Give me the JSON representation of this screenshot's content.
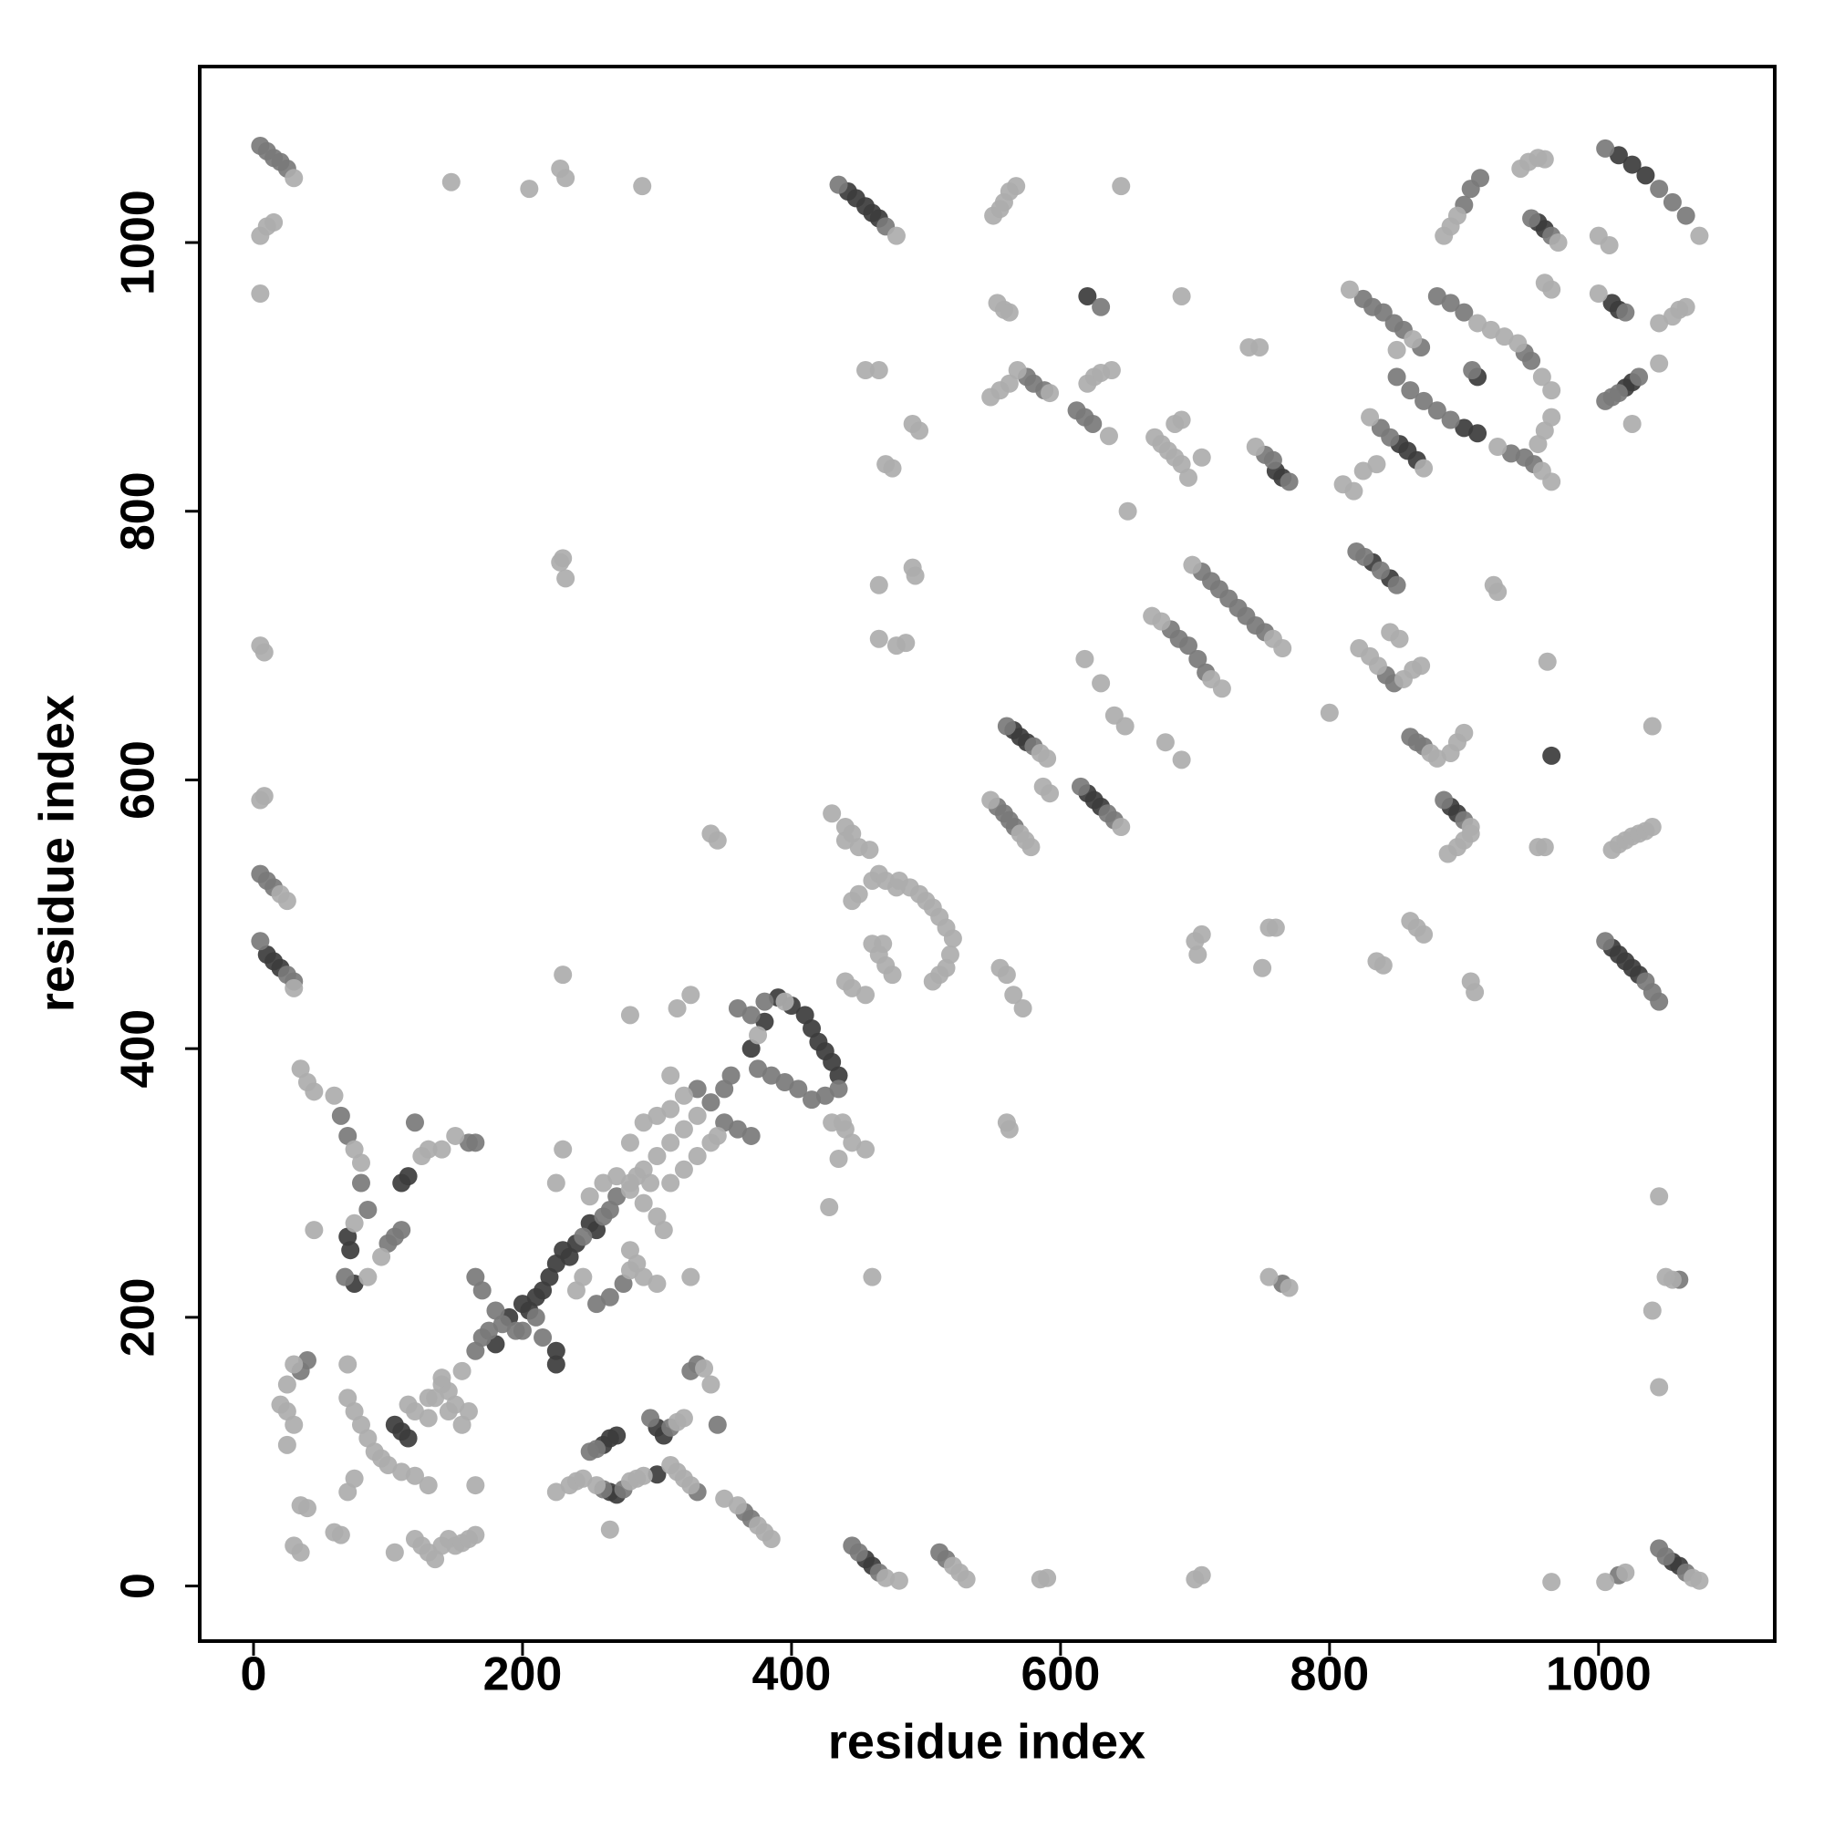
{
  "chart_data": {
    "type": "scatter",
    "xlabel": "residue index",
    "ylabel": "residue index",
    "xlim": [
      -40,
      1131
    ],
    "ylim": [
      -41,
      1131
    ],
    "xticks": [
      0,
      200,
      400,
      600,
      800,
      1000
    ],
    "yticks": [
      0,
      200,
      400,
      600,
      800,
      1000
    ],
    "series": [
      {
        "color": "#3c3c3c",
        "x": [
          442,
          448,
          455,
          460,
          465,
          1015,
          1025,
          1035,
          1010,
          1015,
          1020,
          1025,
          1030,
          10,
          15,
          20,
          390,
          400,
          410,
          415,
          420,
          425,
          430,
          435,
          380,
          370,
          180,
          190,
          200,
          205,
          210,
          215,
          220,
          225,
          230,
          235,
          240,
          250,
          255,
          225,
          225,
          70,
          72,
          75,
          110,
          115,
          105,
          110,
          115,
          260,
          265,
          270,
          265,
          270,
          300,
          300,
          305,
          620,
          1010,
          1015,
          620,
          625,
          630,
          565,
          570,
          575,
          965,
          845,
          832,
          960,
          955,
          858,
          865,
          852,
          900,
          910,
          910,
          760,
          765,
          890,
          895,
          1020,
          1025,
          1055,
          1060,
          455,
          460
        ],
        "values": [
          1038,
          1033,
          1027,
          1022,
          1018,
          1065,
          1058,
          1050,
          475,
          470,
          465,
          460,
          455,
          470,
          465,
          460,
          438,
          432,
          425,
          415,
          405,
          398,
          390,
          380,
          420,
          400,
          180,
          200,
          210,
          205,
          215,
          220,
          230,
          240,
          250,
          245,
          255,
          270,
          265,
          175,
          165,
          260,
          250,
          225,
          300,
          305,
          120,
          115,
          110,
          105,
          110,
          112,
          70,
          68,
          83,
          118,
          112,
          960,
          955,
          950,
          590,
          585,
          580,
          637,
          632,
          628,
          618,
          750,
          762,
          1010,
          1015,
          845,
          838,
          850,
          862,
          858,
          900,
          830,
          825,
          580,
          575,
          892,
          896,
          18,
          15,
          20,
          15
        ]
      },
      {
        "color": "#7a7a7a",
        "x": [
          5,
          10,
          15,
          20,
          25,
          435,
          470,
          1005,
          1045,
          1055,
          1065,
          900,
          905,
          912,
          950,
          965,
          1020,
          1005,
          1010,
          1015,
          1030,
          825,
          832,
          840,
          848,
          855,
          868,
          880,
          890,
          900,
          945,
          950,
          850,
          860,
          870,
          880,
          890,
          838,
          845,
          935,
          945,
          952,
          906,
          752,
          758,
          770,
          612,
          618,
          624,
          630,
          575,
          580,
          588,
          705,
          712,
          718,
          725,
          732,
          738,
          745,
          752,
          682,
          688,
          695,
          702,
          708,
          820,
          826,
          838,
          850,
          842,
          848,
          860,
          865,
          870,
          885,
          900,
          560,
          580,
          553,
          558,
          562,
          566,
          635,
          640,
          615,
          1005,
          1035,
          1040,
          1045,
          5,
          25,
          30,
          5,
          10,
          15,
          360,
          370,
          380,
          405,
          395,
          385,
          375,
          425,
          415,
          435,
          165,
          170,
          175,
          185,
          195,
          245,
          260,
          265,
          270,
          165,
          170,
          180,
          200,
          210,
          215,
          255,
          265,
          275,
          360,
          370,
          350,
          330,
          340,
          350,
          355,
          65,
          70,
          68,
          85,
          80,
          100,
          105,
          110,
          120,
          160,
          165,
          40,
          35,
          255,
          250,
          260,
          275,
          310,
          295,
          325,
          330,
          345,
          330,
          365,
          370,
          445,
          450,
          465,
          510,
          515,
          1045,
          1050,
          1065,
          1015,
          1060,
          765
        ],
        "values": [
          1072,
          1068,
          1063,
          1060,
          1055,
          1043,
          1012,
          1070,
          1040,
          1030,
          1020,
          1028,
          1040,
          1048,
          1018,
          1005,
          948,
          882,
          885,
          888,
          900,
          958,
          952,
          948,
          940,
          935,
          922,
          960,
          955,
          948,
          918,
          912,
          900,
          890,
          882,
          875,
          868,
          862,
          855,
          843,
          840,
          835,
          905,
          842,
          838,
          822,
          875,
          870,
          865,
          952,
          900,
          895,
          890,
          755,
          748,
          742,
          735,
          728,
          722,
          715,
          710,
          712,
          705,
          700,
          690,
          680,
          770,
          766,
          756,
          745,
          678,
          672,
          632,
          628,
          625,
          585,
          570,
          640,
          625,
          580,
          575,
          570,
          565,
          575,
          570,
          595,
          480,
          450,
          442,
          435,
          480,
          455,
          450,
          530,
          525,
          520,
          430,
          425,
          435,
          370,
          375,
          380,
          385,
          365,
          362,
          370,
          175,
          185,
          190,
          195,
          190,
          260,
          275,
          280,
          290,
          230,
          220,
          205,
          190,
          200,
          185,
          210,
          215,
          225,
          340,
          335,
          345,
          370,
          360,
          370,
          380,
          350,
          335,
          230,
          280,
          300,
          255,
          260,
          265,
          345,
          330,
          330,
          168,
          160,
          102,
          100,
          72,
          72,
          118,
          125,
          160,
          165,
          120,
          70,
          55,
          50,
          30,
          25,
          10,
          25,
          20,
          28,
          22,
          10,
          8,
          228,
          225
        ]
      },
      {
        "color": "#acacac",
        "x": [
          30,
          5,
          10,
          15,
          5,
          147,
          205,
          228,
          232,
          289,
          478,
          550,
          555,
          558,
          562,
          567,
          645,
          1075,
          942,
          948,
          955,
          960,
          885,
          890,
          895,
          970,
          1000,
          1008,
          1000,
          960,
          965,
          1045,
          1055,
          1060,
          1065,
          1025,
          1045,
          815,
          862,
          850,
          910,
          920,
          930,
          940,
          958,
          965,
          830,
          870,
          925,
          958,
          965,
          955,
          960,
          965,
          740,
          748,
          745,
          670,
          675,
          680,
          685,
          690,
          695,
          685,
          690,
          705,
          636,
          620,
          625,
          630,
          638,
          548,
          555,
          562,
          568,
          592,
          553,
          558,
          562,
          455,
          465,
          470,
          475,
          490,
          495,
          650,
          690,
          810,
          818,
          825,
          835,
          230,
          232,
          228,
          465,
          490,
          492,
          465,
          478,
          485,
          698,
          758,
          765,
          668,
          675,
          712,
          720,
          822,
          830,
          836,
          855,
          862,
          868,
          845,
          852,
          922,
          925,
          618,
          630,
          640,
          648,
          678,
          690,
          800,
          5,
          8,
          8,
          5,
          585,
          590,
          548,
          570,
          574,
          578,
          587,
          592,
          645,
          875,
          880,
          890,
          895,
          900,
          905,
          888,
          895,
          900,
          905,
          962,
          955,
          960,
          1010,
          1015,
          1020,
          1025,
          1030,
          1035,
          1040,
          1040,
          20,
          25,
          30,
          440,
          450,
          458,
          460,
          450,
          445,
          465,
          470,
          478,
          430,
          440,
          445,
          480,
          488,
          495,
          500,
          505,
          510,
          515,
          520,
          518,
          515,
          510,
          505,
          460,
          465,
          470,
          475,
          468,
          440,
          445,
          455,
          555,
          560,
          565,
          572,
          700,
          702,
          705,
          750,
          755,
          760,
          835,
          840,
          860,
          865,
          870,
          905,
          908,
          340,
          345,
          230,
          280,
          130,
          140,
          145,
          155,
          280,
          285,
          290,
          295,
          300,
          310,
          320,
          330,
          375,
          395,
          440,
          445,
          430,
          240,
          245,
          280,
          250,
          260,
          270,
          280,
          290,
          300,
          305,
          310,
          320,
          330,
          340,
          290,
          300,
          310,
          320,
          345,
          310,
          325,
          315,
          35,
          40,
          45,
          60,
          75,
          80,
          75,
          85,
          95,
          125,
          130,
          140,
          150,
          45,
          230,
          225,
          30,
          25,
          20,
          25,
          30,
          25,
          35,
          40,
          30,
          35,
          60,
          65,
          70,
          75,
          80,
          85,
          90,
          95,
          100,
          110,
          120,
          130,
          70,
          75,
          135,
          140,
          145,
          150,
          160,
          155,
          130,
          120,
          115,
          105,
          120,
          125,
          130,
          135,
          140,
          145,
          150,
          155,
          160,
          165,
          70,
          165,
          225,
          235,
          240,
          245,
          255,
          280,
          285,
          290,
          265,
          280,
          300,
          325,
          280,
          285,
          290,
          315,
          320,
          335,
          340,
          310,
          315,
          320,
          325,
          350,
          360,
          375,
          380,
          385,
          470,
          480,
          520,
          525,
          530,
          585,
          590,
          700,
          705,
          965,
          1005,
          1020,
          1070,
          1075,
          1045,
          1050,
          1055,
          1040,
          1045,
          755,
          770,
          460,
          560,
          562,
          428,
          435,
          455,
          438
        ],
        "values": [
          1048,
          1005,
          1012,
          1015,
          962,
          1045,
          1040,
          1055,
          1048,
          1042,
          1005,
          1020,
          1025,
          1030,
          1038,
          1042,
          1042,
          1005,
          1055,
          1060,
          1063,
          1062,
          1005,
          1012,
          1020,
          1000,
          1005,
          998,
          962,
          970,
          965,
          940,
          945,
          950,
          952,
          865,
          910,
          965,
          928,
          920,
          940,
          935,
          930,
          925,
          900,
          890,
          870,
          832,
          848,
          830,
          822,
          850,
          860,
          870,
          922,
          922,
          848,
          855,
          850,
          845,
          840,
          835,
          825,
          865,
          868,
          840,
          856,
          895,
          900,
          903,
          905,
          885,
          890,
          895,
          905,
          888,
          955,
          950,
          948,
          905,
          905,
          835,
          832,
          865,
          860,
          800,
          960,
          820,
          815,
          830,
          835,
          765,
          750,
          762,
          745,
          758,
          752,
          705,
          700,
          702,
          760,
          705,
          698,
          722,
          718,
          675,
          668,
          698,
          692,
          685,
          675,
          682,
          685,
          710,
          705,
          745,
          740,
          690,
          672,
          648,
          640,
          628,
          615,
          650,
          700,
          695,
          588,
          585,
          620,
          616,
          585,
          560,
          555,
          550,
          595,
          590,
          565,
          620,
          616,
          620,
          628,
          635,
          565,
          545,
          550,
          555,
          560,
          688,
          550,
          550,
          548,
          552,
          555,
          558,
          560,
          562,
          565,
          640,
          515,
          510,
          445,
          555,
          550,
          548,
          525,
          515,
          510,
          530,
          525,
          520,
          575,
          565,
          560,
          525,
          520,
          515,
          510,
          505,
          498,
          490,
          482,
          470,
          460,
          455,
          450,
          478,
          470,
          462,
          455,
          478,
          450,
          445,
          440,
          460,
          455,
          440,
          430,
          480,
          470,
          485,
          460,
          490,
          490,
          465,
          462,
          495,
          490,
          485,
          450,
          442,
          560,
          555,
          455,
          425,
          140,
          150,
          145,
          160,
          295,
          305,
          310,
          300,
          320,
          330,
          340,
          350,
          410,
          435,
          340,
          330,
          345,
          220,
          230,
          235,
          290,
          300,
          305,
          300,
          285,
          275,
          265,
          300,
          310,
          320,
          330,
          345,
          350,
          355,
          365,
          335,
          380,
          440,
          430,
          385,
          375,
          368,
          365,
          325,
          315,
          270,
          230,
          245,
          320,
          325,
          325,
          335,
          265,
          325,
          300,
          165,
          150,
          135,
          130,
          120,
          105,
          60,
          58,
          30,
          25,
          40,
          38,
          140,
          130,
          120,
          110,
          100,
          95,
          90,
          85,
          82,
          75,
          70,
          80,
          140,
          155,
          130,
          135,
          130,
          120,
          125,
          130,
          135,
          25,
          35,
          30,
          25,
          20,
          30,
          35,
          30,
          32,
          35,
          38,
          165,
          75,
          70,
          75,
          78,
          80,
          75,
          78,
          80,
          82,
          42,
          330,
          225,
          230,
          250,
          240,
          230,
          122,
          125,
          162,
          150,
          90,
          85,
          80,
          75,
          65,
          60,
          45,
          40,
          35,
          6,
          4,
          15,
          10,
          5,
          5,
          6,
          5,
          8,
          3,
          3,
          10,
          6,
          4,
          290,
          230,
          228,
          205,
          148,
          230,
          222,
          230,
          345,
          340,
          282,
          318,
          325,
          345
        ]
      }
    ]
  }
}
